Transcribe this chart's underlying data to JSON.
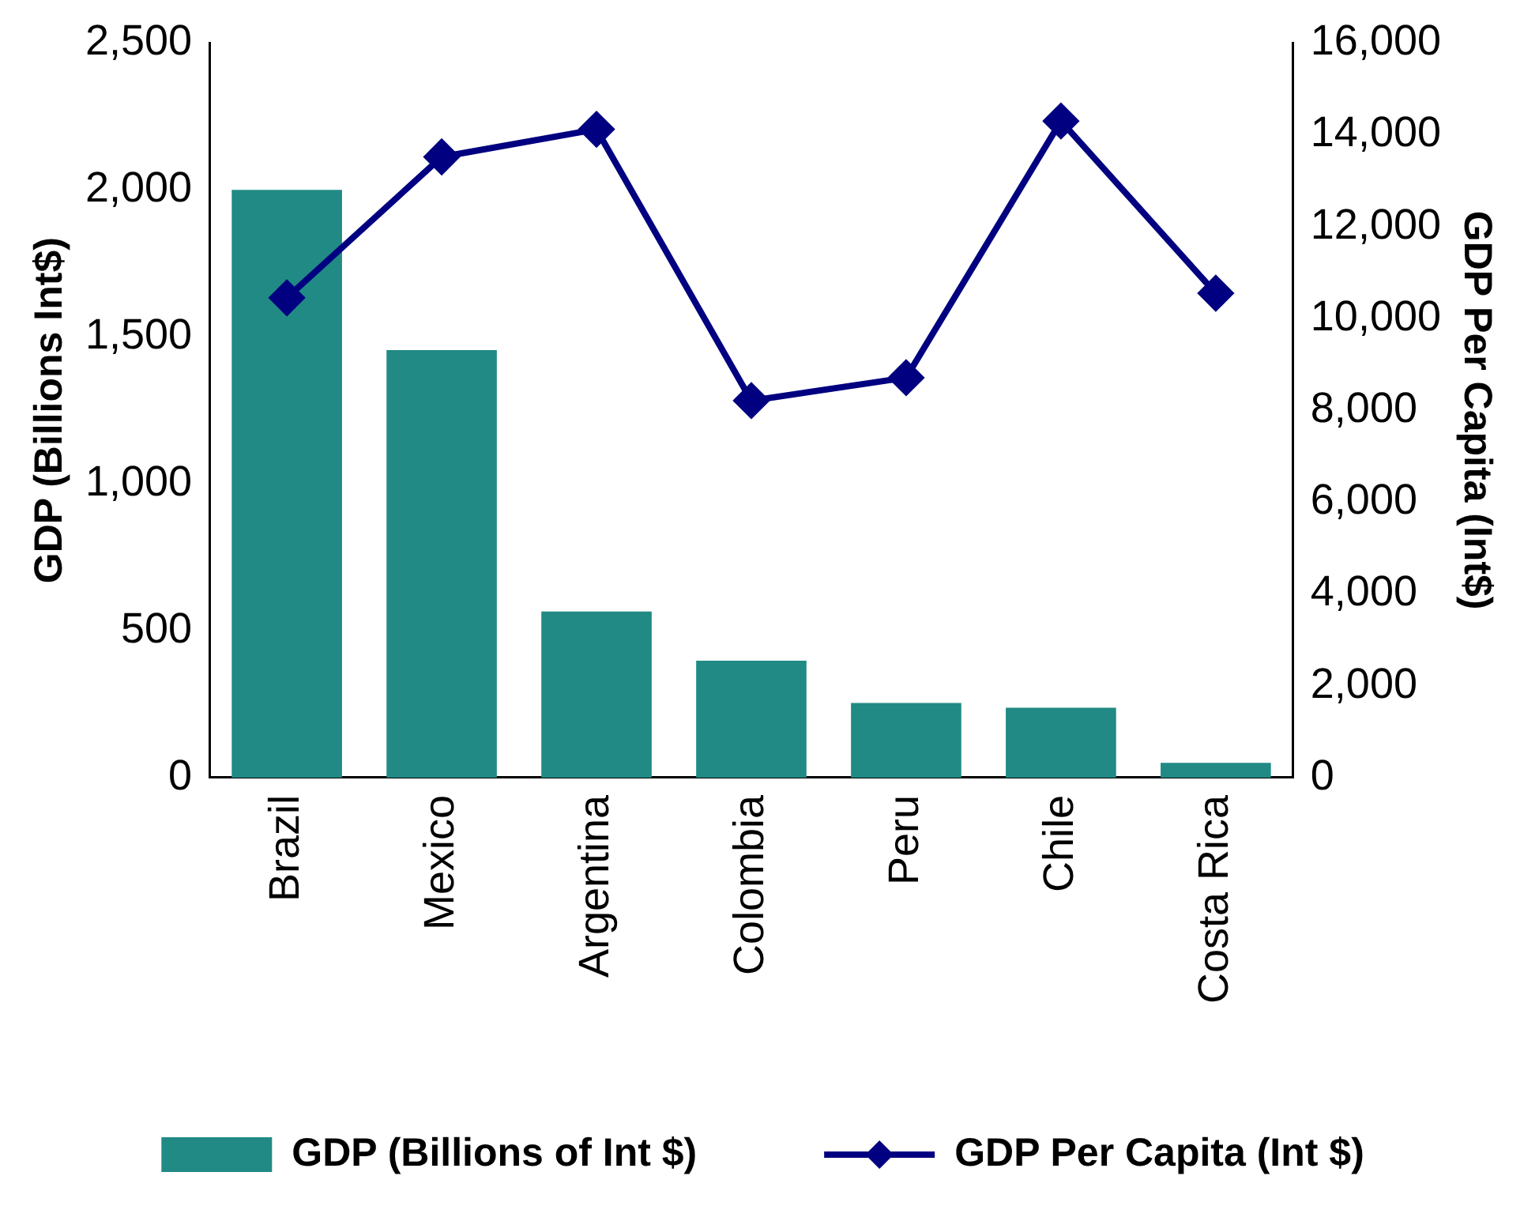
{
  "chart_data": {
    "type": "bar",
    "categories": [
      "Brazil",
      "Mexico",
      "Argentina",
      "Colombia",
      "Peru",
      "Chile",
      "Costa Rica"
    ],
    "ylabel": "GDP (Billions Int$)",
    "y2label": "GDP Per Capita (Int$)",
    "series": [
      {
        "name": "GDP (Billions of Int $)",
        "color": "#218a84",
        "values": [
          2000,
          1455,
          565,
          398,
          254,
          238,
          50
        ]
      },
      {
        "name": "GDP Per Capita (Int $)",
        "type": "line",
        "axis": "y2",
        "color": "#000080",
        "marker": "diamond",
        "values": [
          10450,
          13520,
          14120,
          8210,
          8710,
          14300,
          10550
        ]
      }
    ],
    "ylim": [
      0,
      2500
    ],
    "yticks": [
      0,
      500,
      {
        "value": 1000,
        "label": "1,000"
      },
      {
        "value": 1500,
        "label": "1,500"
      },
      {
        "value": 2000,
        "label": "2,000"
      },
      {
        "value": 2500,
        "label": "2,500"
      }
    ],
    "y2lim": [
      0,
      16000
    ],
    "y2ticks": [
      0,
      {
        "value": 2000,
        "label": "2,000"
      },
      {
        "value": 4000,
        "label": "4,000"
      },
      {
        "value": 6000,
        "label": "6,000"
      },
      {
        "value": 8000,
        "label": "8,000"
      },
      {
        "value": 10000,
        "label": "10,000"
      },
      {
        "value": 12000,
        "label": "12,000"
      },
      {
        "value": 14000,
        "label": "14,000"
      },
      {
        "value": 16000,
        "label": "16,000"
      }
    ],
    "grid": false,
    "legend": "bottom"
  }
}
